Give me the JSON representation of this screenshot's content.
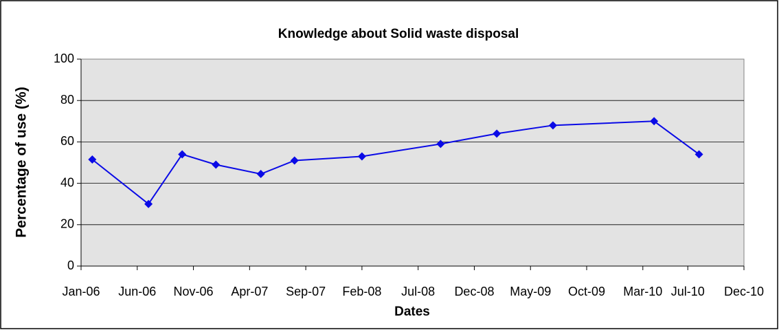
{
  "chart_data": {
    "type": "line",
    "title": "Knowledge about Solid waste disposal",
    "x_label": "Dates",
    "y_label": "Percentage of use (%)",
    "x": [
      "2006-02",
      "2006-07",
      "2006-10",
      "2007-01",
      "2007-05",
      "2007-08",
      "2008-02",
      "2008-09",
      "2009-02",
      "2009-07",
      "2010-04",
      "2010-08"
    ],
    "series": [
      {
        "name": "Knowledge",
        "color": "#0a0ae6",
        "values": [
          51.5,
          30,
          54,
          49,
          44.5,
          51,
          53,
          59,
          64,
          68,
          70,
          54
        ]
      }
    ],
    "xlim": [
      "2006-01",
      "2010-12"
    ],
    "xticks": [
      {
        "value": "2006-01",
        "label": "Jan-06"
      },
      {
        "value": "2006-06",
        "label": "Jun-06"
      },
      {
        "value": "2006-11",
        "label": "Nov-06"
      },
      {
        "value": "2007-04",
        "label": "Apr-07"
      },
      {
        "value": "2007-09",
        "label": "Sep-07"
      },
      {
        "value": "2008-02",
        "label": "Feb-08"
      },
      {
        "value": "2008-07",
        "label": "Jul-08"
      },
      {
        "value": "2008-12",
        "label": "Dec-08"
      },
      {
        "value": "2009-05",
        "label": "May-09"
      },
      {
        "value": "2009-10",
        "label": "Oct-09"
      },
      {
        "value": "2010-03",
        "label": "Mar-10"
      },
      {
        "value": "2010-07",
        "label": "Jul-10"
      },
      {
        "value": "2010-12",
        "label": "Dec-10"
      }
    ],
    "ylim": [
      0,
      100
    ],
    "yticks": [
      0,
      20,
      40,
      60,
      80,
      100
    ],
    "grid": true
  }
}
